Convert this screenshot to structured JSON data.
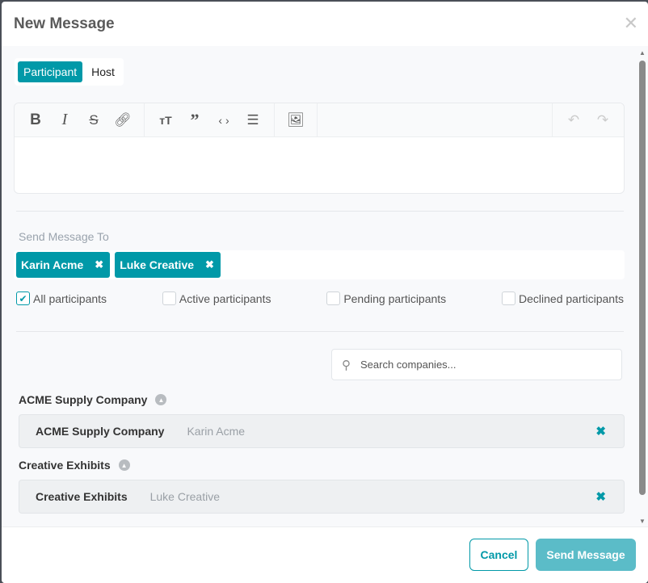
{
  "header": {
    "title": "New Message",
    "close_icon": "close-icon"
  },
  "tabs": [
    {
      "label": "Participant",
      "active": true
    },
    {
      "label": "Host",
      "active": false
    }
  ],
  "editor": {
    "toolbar": [
      "bold",
      "italic",
      "strikethrough",
      "link",
      "heading",
      "quote",
      "code",
      "bullet-list",
      "image",
      "undo",
      "redo"
    ],
    "content": ""
  },
  "recipients": {
    "label": "Send Message To",
    "tags": [
      "Karin Acme",
      "Luke Creative"
    ]
  },
  "filters": [
    {
      "label": "All participants",
      "checked": true
    },
    {
      "label": "Active participants",
      "checked": false
    },
    {
      "label": "Pending participants",
      "checked": false
    },
    {
      "label": "Declined participants",
      "checked": false
    }
  ],
  "search": {
    "placeholder": "Search companies...",
    "value": ""
  },
  "groups": [
    {
      "name": "ACME Supply Company",
      "rows": [
        {
          "company": "ACME Supply Company",
          "participant": "Karin Acme"
        }
      ]
    },
    {
      "name": "Creative Exhibits",
      "rows": [
        {
          "company": "Creative Exhibits",
          "participant": "Luke Creative"
        }
      ]
    }
  ],
  "footer": {
    "cancel": "Cancel",
    "send": "Send Message"
  },
  "colors": {
    "accent": "#0199a8",
    "send_disabled": "#5bbcc8"
  }
}
